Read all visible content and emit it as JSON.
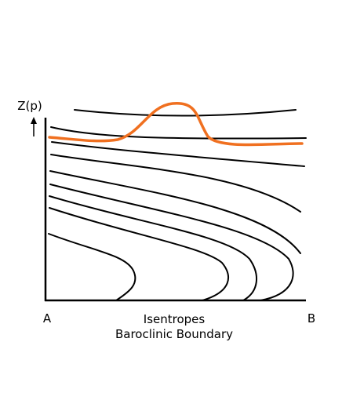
{
  "axis": {
    "y_label": "Z(p)",
    "start": "A",
    "end": "B"
  },
  "caption": {
    "title": "Isentropes",
    "subtitle": "Baroclinic Boundary"
  }
}
